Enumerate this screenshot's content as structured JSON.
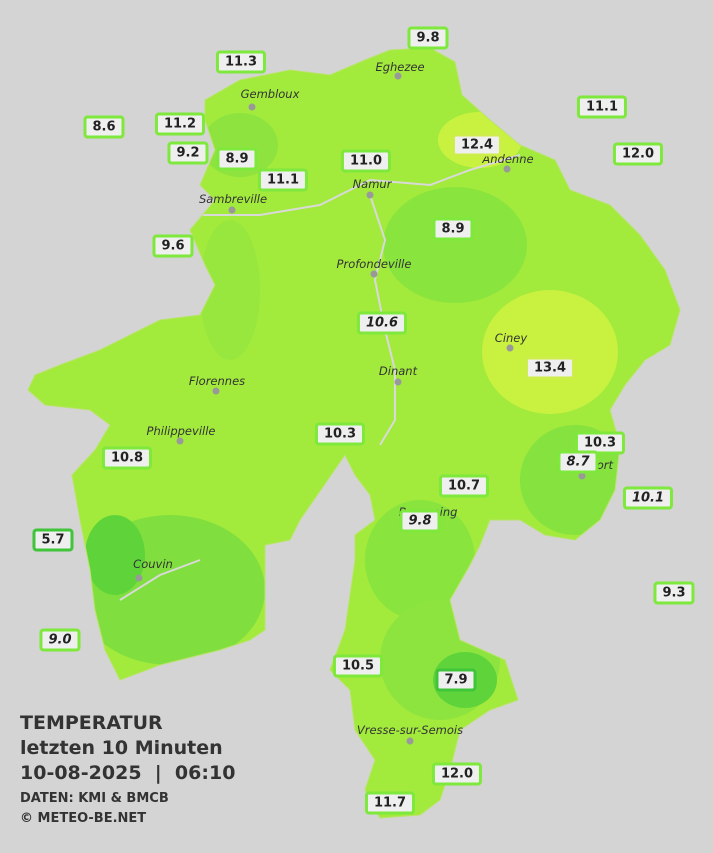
{
  "legend": {
    "title": "TEMPERATUR",
    "subtitle": "letzten 10 Minuten",
    "datetime": "10-08-2025  |  06:10",
    "source": "DATEN: KMI & BMCB",
    "copyright": "© METEO-BE.NET"
  },
  "places": [
    "Eghezee",
    "Gembloux",
    "Andenne",
    "Namur",
    "Sambreville",
    "Profondeville",
    "Ciney",
    "Dinant",
    "Florennes",
    "Philippeville",
    "Beauraing",
    "Rochefort",
    "Couvin",
    "Vresse-sur-Semois"
  ],
  "stations": [
    "9.8",
    "11.3",
    "11.1",
    "8.6",
    "11.2",
    "12.4",
    "12.0",
    "9.2",
    "8.9",
    "11.0",
    "11.1",
    "8.9",
    "9.6",
    "10.6",
    "13.4",
    "10.3",
    "10.3",
    "8.7",
    "10.8",
    "10.7",
    "10.1",
    "9.8",
    "5.7",
    "9.3",
    "9.0",
    "10.5",
    "7.9",
    "12.0",
    "11.7"
  ]
}
